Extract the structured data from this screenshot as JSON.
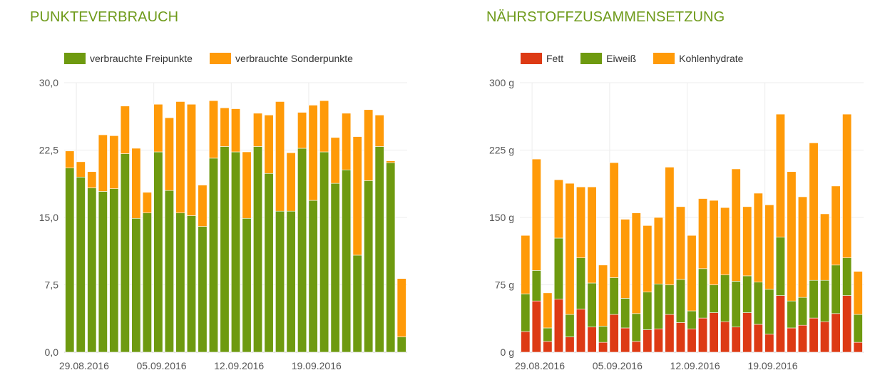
{
  "charts": {
    "points": {
      "title": "PUNKTEVERBRAUCH",
      "legend": [
        {
          "label": "verbrauchte Freipunkte",
          "color": "#6e9a10"
        },
        {
          "label": "verbrauchte Sonderpunkte",
          "color": "#ff9a08"
        }
      ]
    },
    "nutrients": {
      "title": "NÄHRSTOFFZUSAMMENSETZUNG",
      "legend": [
        {
          "label": "Fett",
          "color": "#dd3a14"
        },
        {
          "label": "Eiweiß",
          "color": "#6e9a10"
        },
        {
          "label": "Kohlenhydrate",
          "color": "#ff9a08"
        }
      ]
    }
  },
  "chart_data": [
    {
      "type": "bar",
      "stacked": true,
      "title": "PUNKTEVERBRAUCH",
      "ylim": [
        0,
        30
      ],
      "yticks": [
        0,
        7.5,
        15,
        22.5,
        30
      ],
      "ytick_labels": [
        "0,0",
        "7,5",
        "15,0",
        "22,5",
        "30,0"
      ],
      "xtick_labels": [
        {
          "label": "29.08.2016",
          "index": 0
        },
        {
          "label": "05.09.2016",
          "index": 7
        },
        {
          "label": "12.09.2016",
          "index": 14
        },
        {
          "label": "19.09.2016",
          "index": 21
        }
      ],
      "grid": true,
      "legend_position": "top-left",
      "series": [
        {
          "name": "verbrauchte Freipunkte",
          "color": "#6e9a10",
          "values": [
            20.5,
            19.5,
            18.3,
            17.9,
            18.2,
            22.1,
            14.9,
            15.5,
            22.3,
            18.0,
            15.5,
            15.2,
            14.0,
            21.6,
            22.9,
            22.3,
            14.9,
            22.9,
            19.9,
            15.7,
            15.7,
            22.7,
            16.9,
            22.3,
            18.8,
            20.3,
            10.8,
            19.1,
            22.9,
            21.1,
            1.7
          ]
        },
        {
          "name": "verbrauchte Sonderpunkte",
          "color": "#ff9a08",
          "values": [
            1.9,
            1.7,
            1.8,
            6.3,
            5.9,
            5.3,
            7.8,
            2.3,
            5.3,
            8.1,
            12.4,
            12.4,
            4.6,
            6.4,
            4.3,
            4.8,
            7.4,
            3.7,
            6.5,
            12.2,
            6.5,
            4.0,
            10.6,
            5.7,
            5.1,
            6.3,
            13.2,
            7.9,
            3.5,
            0.2,
            6.5
          ]
        }
      ]
    },
    {
      "type": "bar",
      "stacked": true,
      "title": "NÄHRSTOFFZUSAMMENSETZUNG",
      "ylim": [
        0,
        300
      ],
      "yticks": [
        0,
        75,
        150,
        225,
        300
      ],
      "ytick_labels": [
        "0 g",
        "75 g",
        "150 g",
        "225 g",
        "300 g"
      ],
      "xtick_labels": [
        {
          "label": "29.08.2016",
          "index": 0
        },
        {
          "label": "05.09.2016",
          "index": 7
        },
        {
          "label": "12.09.2016",
          "index": 14
        },
        {
          "label": "19.09.2016",
          "index": 21
        }
      ],
      "grid": true,
      "legend_position": "top-left",
      "series": [
        {
          "name": "Fett",
          "color": "#dd3a14",
          "values": [
            23,
            57,
            12,
            59,
            17,
            48,
            28,
            11,
            42,
            27,
            12,
            25,
            26,
            42,
            33,
            26,
            38,
            44,
            34,
            28,
            44,
            31,
            20,
            63,
            27,
            30,
            38,
            34,
            43,
            63,
            11
          ]
        },
        {
          "name": "Eiweiß",
          "color": "#6e9a10",
          "values": [
            42,
            34,
            15,
            68,
            25,
            57,
            49,
            18,
            41,
            33,
            31,
            42,
            50,
            33,
            48,
            20,
            55,
            31,
            52,
            51,
            41,
            47,
            50,
            65,
            30,
            31,
            42,
            46,
            54,
            42,
            31
          ]
        },
        {
          "name": "Kohlenhydrate",
          "color": "#ff9a08",
          "values": [
            65,
            124,
            39,
            65,
            146,
            79,
            107,
            68,
            128,
            88,
            112,
            74,
            74,
            131,
            81,
            84,
            78,
            94,
            75,
            125,
            77,
            99,
            94,
            137,
            144,
            112,
            153,
            74,
            88,
            160,
            48
          ]
        }
      ]
    }
  ]
}
